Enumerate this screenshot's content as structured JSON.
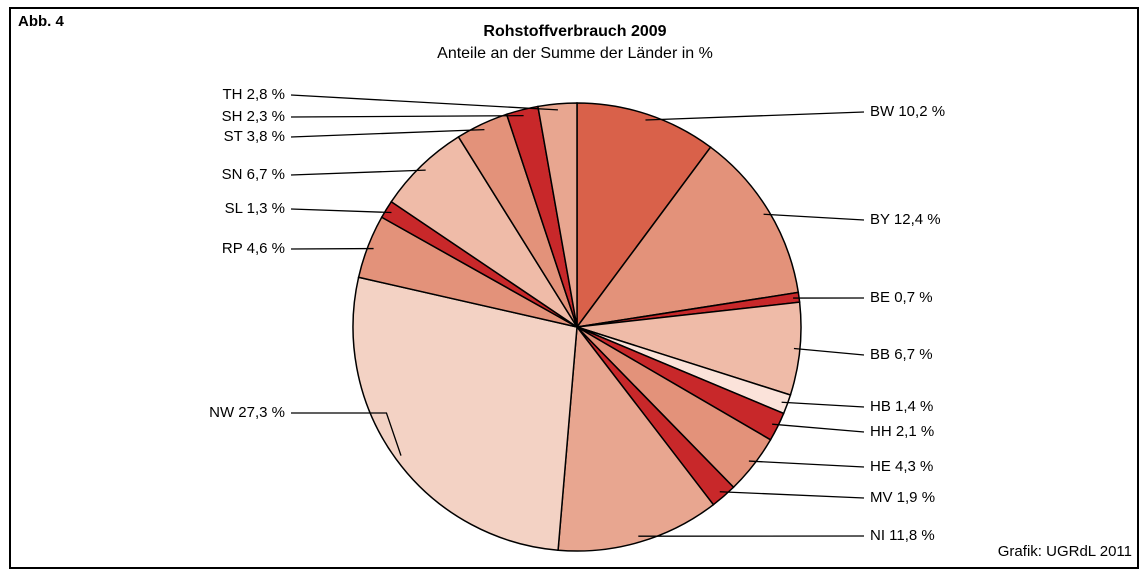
{
  "chart_data": {
    "type": "pie",
    "figure_label": "Abb. 4",
    "title": "Rohstoffverbrauch 2009",
    "subtitle": "Anteile an der Summe der Länder in %",
    "source": "Grafik: UGRdL 2011",
    "categories": [
      "BW",
      "BY",
      "BE",
      "BB",
      "HB",
      "HH",
      "HE",
      "MV",
      "NI",
      "NW",
      "RP",
      "SL",
      "SN",
      "ST",
      "SH",
      "TH"
    ],
    "values": [
      10.2,
      12.4,
      0.7,
      6.7,
      1.4,
      2.1,
      4.3,
      1.9,
      11.8,
      27.3,
      4.6,
      1.3,
      6.7,
      3.8,
      2.3,
      2.8
    ],
    "value_labels": [
      "10,2 %",
      "12,4 %",
      "0,7 %",
      "6,7 %",
      "1,4 %",
      "2,1 %",
      "4,3 %",
      "1,9 %",
      "11,8 %",
      "27,3 %",
      "4,6 %",
      "1,3 %",
      "6,7 %",
      "3,8 %",
      "2,3 %",
      "2,8 %"
    ],
    "colors": [
      "#d9614a",
      "#e3927a",
      "#c8282a",
      "#efbba8",
      "#fbe3da",
      "#c8282a",
      "#e3927a",
      "#c8282a",
      "#e8a690",
      "#f3d2c4",
      "#e3927a",
      "#c8282a",
      "#efbba8",
      "#e3927a",
      "#c8282a",
      "#e8a690"
    ]
  }
}
